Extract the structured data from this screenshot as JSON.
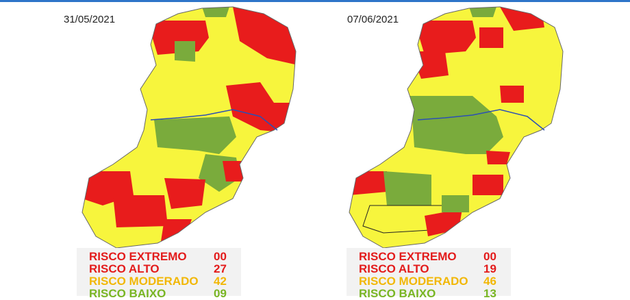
{
  "panels": [
    {
      "date": "31/05/2021",
      "risks": [
        {
          "label": "RISCO EXTREMO",
          "count": "00"
        },
        {
          "label": "RISCO ALTO",
          "count": "27"
        },
        {
          "label": "RISCO MODERADO",
          "count": "42"
        },
        {
          "label": "RISCO BAIXO",
          "count": "09"
        }
      ]
    },
    {
      "date": "07/06/2021",
      "risks": [
        {
          "label": "RISCO EXTREMO",
          "count": "00"
        },
        {
          "label": "RISCO ALTO",
          "count": "19"
        },
        {
          "label": "RISCO MODERADO",
          "count": "46"
        },
        {
          "label": "RISCO BAIXO",
          "count": "13"
        }
      ]
    }
  ]
}
